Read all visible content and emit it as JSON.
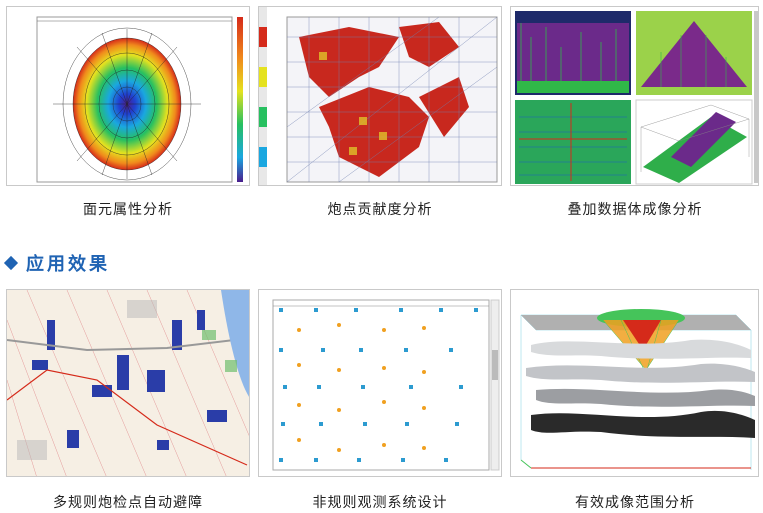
{
  "top_row": {
    "captions": [
      "面元属性分析",
      "炮点贡献度分析",
      "叠加数据体成像分析"
    ]
  },
  "section": {
    "title": "应用效果"
  },
  "bottom_row": {
    "captions": [
      "多规则炮检点自动避障",
      "非规则观测系统设计",
      "有效成像范围分析"
    ]
  },
  "colors": {
    "accent": "#1f63b3"
  }
}
